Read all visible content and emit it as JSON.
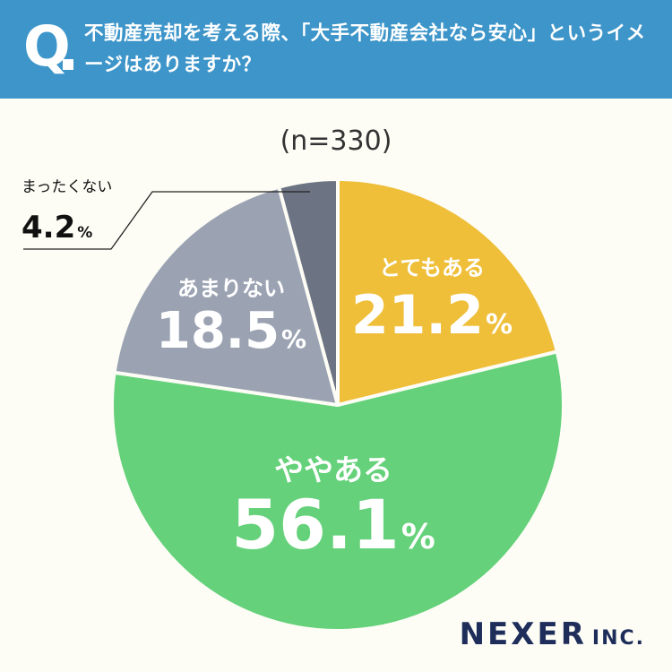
{
  "header": {
    "q_mark": "Q",
    "question": "不動産売却を考える際、「大手不動産会社なら安心」というイメージはありますか？"
  },
  "sample_size": "(n=330)",
  "logo": {
    "name": "NEXER",
    "suffix": "INC."
  },
  "colors": {
    "header_bg": "#3d95c9",
    "slice_1": "#efbf3a",
    "slice_2": "#65d17a",
    "slice_3": "#9ba3b3",
    "slice_4": "#6c7383"
  },
  "chart_data": {
    "type": "pie",
    "start": "12 o'clock",
    "direction": "clockwise",
    "n": 330,
    "slices": [
      {
        "label": "とてもある",
        "value": 21.2,
        "display": "21.2",
        "unit": "%",
        "color": "#efbf3a"
      },
      {
        "label": "ややある",
        "value": 56.1,
        "display": "56.1",
        "unit": "%",
        "color": "#65d17a"
      },
      {
        "label": "あまりない",
        "value": 18.5,
        "display": "18.5",
        "unit": "%",
        "color": "#9ba3b3"
      },
      {
        "label": "まったくない",
        "value": 4.2,
        "display": "4.2",
        "unit": "%",
        "color": "#6c7383"
      }
    ]
  }
}
